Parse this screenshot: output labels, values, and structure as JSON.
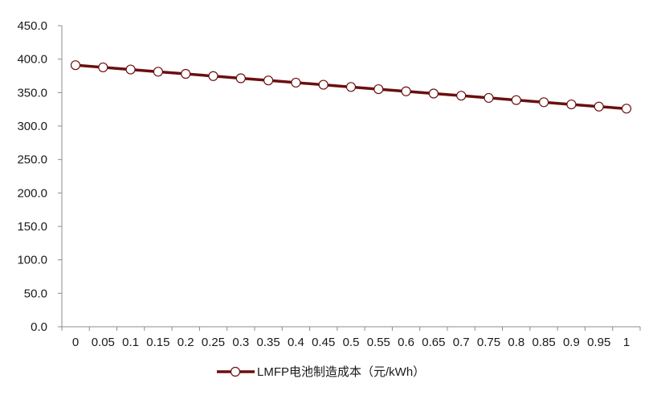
{
  "chart_data": {
    "type": "line",
    "title": "",
    "xlabel": "",
    "ylabel": "",
    "categories": [
      "0",
      "0.05",
      "0.1",
      "0.15",
      "0.2",
      "0.25",
      "0.3",
      "0.35",
      "0.4",
      "0.45",
      "0.5",
      "0.55",
      "0.6",
      "0.65",
      "0.7",
      "0.75",
      "0.8",
      "0.85",
      "0.9",
      "0.95",
      "1"
    ],
    "series": [
      {
        "name": "LMFP电池制造成本（元/kWh）",
        "color": "#6b0f0f",
        "marker_fill": "#ffffff",
        "values": [
          391.0,
          387.7,
          384.5,
          381.2,
          378.0,
          374.7,
          371.4,
          368.2,
          364.9,
          361.7,
          358.4,
          355.1,
          351.9,
          348.6,
          345.4,
          342.1,
          338.8,
          335.6,
          332.3,
          329.1,
          326.0
        ]
      }
    ],
    "y_ticks": [
      "450.0",
      "400.0",
      "350.0",
      "300.0",
      "250.0",
      "200.0",
      "150.0",
      "100.0",
      "50.0",
      "0.0"
    ],
    "ylim": [
      0,
      450
    ],
    "grid": false,
    "legend_position": "bottom-center"
  }
}
